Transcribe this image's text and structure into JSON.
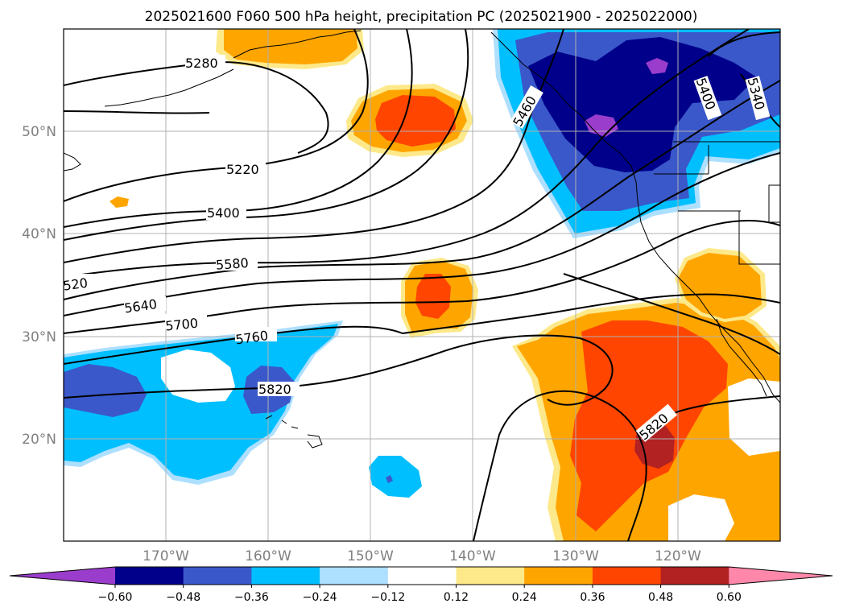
{
  "map": {
    "title": "2025021600 F060 500 hPa height, precipitation PC (2025021900 - 2025022000)",
    "extent": {
      "lon": [
        -180,
        -110
      ],
      "lat": [
        10,
        60
      ]
    },
    "lat_labels": [
      "50°N",
      "40°N",
      "30°N",
      "20°N"
    ],
    "lon_labels": [
      "170°W",
      "160°W",
      "150°W",
      "140°W",
      "130°W",
      "120°W"
    ],
    "lat_values": [
      50,
      40,
      30,
      20
    ],
    "lon_values": [
      -170,
      -160,
      -150,
      -140,
      -130,
      -120
    ],
    "contour_labels": [
      "5280",
      "5220",
      "5400",
      "5580",
      "520",
      "5640",
      "5700",
      "5760",
      "5820",
      "5460",
      "5400",
      "5340",
      "5820"
    ]
  },
  "colorbar": {
    "tick_labels": [
      "−0.60",
      "−0.48",
      "−0.36",
      "−0.24",
      "−0.12",
      "0.12",
      "0.24",
      "0.36",
      "0.48",
      "0.60"
    ],
    "colors": [
      "#9b3dcc",
      "#00008b",
      "#3a58c9",
      "#00bfff",
      "#addfff",
      "#ffffff",
      "#fde98a",
      "#ffa500",
      "#ff4500",
      "#b22222",
      "#ff88aa"
    ]
  }
}
